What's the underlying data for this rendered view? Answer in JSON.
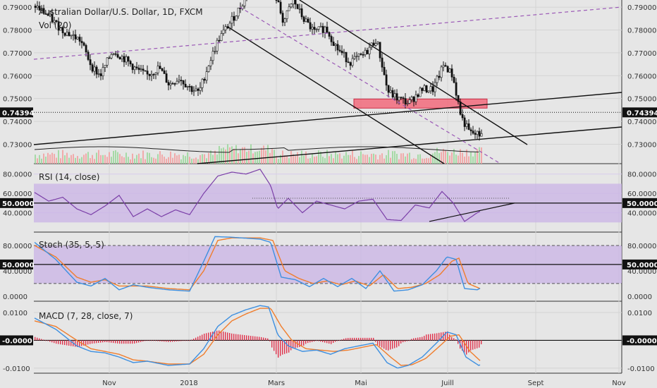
{
  "colors": {
    "background": "#e6e6e6",
    "bull": "#ffffff",
    "bear": "#101010",
    "rsi": "#7b3fa8",
    "rsi_band": "#c9b3e6",
    "stoch_k": "#3d8fe0",
    "stoch_d": "#f07d2c",
    "macd_line": "#3d8fe0",
    "signal_line": "#f07d2c",
    "hist_pos": "#e0334d",
    "hist_neg": "#e0334d",
    "zone": "#f26b7d",
    "trend": "#111111",
    "dashed": "#9b59b6",
    "vol_bar": "#f2a3a3",
    "vol_bar_up": "#9ed89e"
  },
  "chart_data": [
    {
      "type": "candlestick",
      "title": "Australian Dollar/U.S. Dollar, 1D, FXCM",
      "subtitle": "Vol (20)",
      "x_ticks": [
        "Nov",
        "2018",
        "Mars",
        "Mai",
        "Juill",
        "Sept",
        "Nov"
      ],
      "y_ticks": [
        "0.79000",
        "0.78000",
        "0.77000",
        "0.76000",
        "0.75000",
        "0.74000",
        "0.73000"
      ],
      "ylim": [
        0.7215,
        0.7925
      ],
      "last_price": "0.74394",
      "key_close_path": [
        [
          0,
          0.7905
        ],
        [
          16,
          0.7868
        ],
        [
          38,
          0.78
        ],
        [
          64,
          0.7755
        ],
        [
          80,
          0.764
        ],
        [
          92,
          0.76
        ],
        [
          110,
          0.771
        ],
        [
          128,
          0.767
        ],
        [
          142,
          0.763
        ],
        [
          158,
          0.76
        ],
        [
          176,
          0.7635
        ],
        [
          190,
          0.756
        ],
        [
          204,
          0.759
        ],
        [
          220,
          0.7545
        ],
        [
          232,
          0.7525
        ],
        [
          246,
          0.765
        ],
        [
          260,
          0.776
        ],
        [
          276,
          0.783
        ],
        [
          292,
          0.7905
        ],
        [
          312,
          0.805
        ],
        [
          326,
          0.808
        ],
        [
          340,
          0.796
        ],
        [
          352,
          0.7835
        ],
        [
          366,
          0.793
        ],
        [
          380,
          0.785
        ],
        [
          396,
          0.779
        ],
        [
          412,
          0.781
        ],
        [
          428,
          0.772
        ],
        [
          446,
          0.766
        ],
        [
          466,
          0.769
        ],
        [
          484,
          0.776
        ],
        [
          500,
          0.753
        ],
        [
          514,
          0.75
        ],
        [
          530,
          0.748
        ],
        [
          548,
          0.754
        ],
        [
          564,
          0.754
        ],
        [
          580,
          0.765
        ],
        [
          592,
          0.76
        ],
        [
          604,
          0.742
        ],
        [
          616,
          0.735
        ],
        [
          630,
          0.734
        ],
        [
          648,
          0.745
        ],
        [
          660,
          0.737
        ],
        [
          672,
          0.741
        ],
        [
          682,
          0.7439
        ]
      ],
      "resistance_zone": [
        0.7458,
        0.7498
      ],
      "annotations": [
        "descending channel",
        "ascending trendlines",
        "dashed parallel channel"
      ]
    },
    {
      "type": "line",
      "title": "RSI (14, close)",
      "y_ticks": [
        "80.0000",
        "60.0000",
        "40.0000"
      ],
      "badge": "50.0000",
      "ylim": [
        20,
        90
      ],
      "band": [
        30,
        70
      ],
      "key_points": [
        [
          0,
          61
        ],
        [
          20,
          52
        ],
        [
          40,
          56
        ],
        [
          60,
          44
        ],
        [
          80,
          38
        ],
        [
          100,
          47
        ],
        [
          120,
          58
        ],
        [
          140,
          36
        ],
        [
          160,
          44
        ],
        [
          180,
          36
        ],
        [
          200,
          43
        ],
        [
          220,
          38
        ],
        [
          240,
          60
        ],
        [
          260,
          78
        ],
        [
          280,
          82
        ],
        [
          300,
          80
        ],
        [
          320,
          85
        ],
        [
          335,
          68
        ],
        [
          345,
          44
        ],
        [
          360,
          55
        ],
        [
          380,
          40
        ],
        [
          400,
          52
        ],
        [
          420,
          48
        ],
        [
          440,
          44
        ],
        [
          460,
          52
        ],
        [
          480,
          54
        ],
        [
          500,
          33
        ],
        [
          520,
          32
        ],
        [
          540,
          48
        ],
        [
          560,
          45
        ],
        [
          578,
          62
        ],
        [
          594,
          50
        ],
        [
          610,
          31
        ],
        [
          628,
          40
        ],
        [
          648,
          47
        ],
        [
          668,
          46
        ],
        [
          682,
          55
        ]
      ]
    },
    {
      "type": "line",
      "title": "Stoch (35, 5, 5)",
      "y_ticks": [
        "80.0000",
        "40.0000",
        "0.0000"
      ],
      "badge": "50.0000",
      "ylim": [
        -8,
        100
      ],
      "band": [
        20,
        80
      ],
      "series": [
        {
          "name": "%K",
          "points": [
            [
              0,
              85
            ],
            [
              30,
              58
            ],
            [
              60,
              22
            ],
            [
              80,
              16
            ],
            [
              100,
              28
            ],
            [
              120,
              10
            ],
            [
              140,
              18
            ],
            [
              160,
              14
            ],
            [
              190,
              10
            ],
            [
              220,
              8
            ],
            [
              240,
              55
            ],
            [
              256,
              94
            ],
            [
              280,
              93
            ],
            [
              320,
              90
            ],
            [
              335,
              85
            ],
            [
              350,
              30
            ],
            [
              370,
              26
            ],
            [
              390,
              15
            ],
            [
              410,
              28
            ],
            [
              430,
              15
            ],
            [
              450,
              28
            ],
            [
              470,
              12
            ],
            [
              490,
              40
            ],
            [
              510,
              8
            ],
            [
              530,
              10
            ],
            [
              550,
              18
            ],
            [
              570,
              40
            ],
            [
              585,
              62
            ],
            [
              598,
              58
            ],
            [
              610,
              12
            ],
            [
              628,
              10
            ],
            [
              648,
              22
            ],
            [
              668,
              20
            ],
            [
              682,
              28
            ]
          ]
        },
        {
          "name": "%D",
          "points": [
            [
              0,
              80
            ],
            [
              30,
              62
            ],
            [
              60,
              30
            ],
            [
              80,
              22
            ],
            [
              100,
              26
            ],
            [
              120,
              16
            ],
            [
              140,
              16
            ],
            [
              160,
              16
            ],
            [
              190,
              12
            ],
            [
              220,
              10
            ],
            [
              240,
              40
            ],
            [
              260,
              88
            ],
            [
              280,
              92
            ],
            [
              320,
              92
            ],
            [
              338,
              88
            ],
            [
              355,
              40
            ],
            [
              375,
              28
            ],
            [
              395,
              20
            ],
            [
              415,
              24
            ],
            [
              435,
              18
            ],
            [
              455,
              24
            ],
            [
              475,
              16
            ],
            [
              495,
              34
            ],
            [
              515,
              12
            ],
            [
              535,
              14
            ],
            [
              555,
              20
            ],
            [
              575,
              34
            ],
            [
              592,
              55
            ],
            [
              602,
              60
            ],
            [
              615,
              20
            ],
            [
              632,
              12
            ],
            [
              650,
              18
            ],
            [
              670,
              22
            ],
            [
              682,
              24
            ]
          ]
        }
      ]
    },
    {
      "type": "line",
      "title": "MACD (7, 28, close, 7)",
      "y_ticks": [
        "0.0100",
        "-0.0100"
      ],
      "badge": "-0.0000",
      "ylim": [
        -0.0118,
        0.0138
      ],
      "series": [
        {
          "name": "MACD",
          "points": [
            [
              0,
              0.008
            ],
            [
              30,
              0.004
            ],
            [
              60,
              -0.002
            ],
            [
              80,
              -0.004
            ],
            [
              100,
              -0.0045
            ],
            [
              120,
              -0.006
            ],
            [
              140,
              -0.008
            ],
            [
              160,
              -0.0075
            ],
            [
              190,
              -0.009
            ],
            [
              220,
              -0.0085
            ],
            [
              240,
              -0.003
            ],
            [
              260,
              0.005
            ],
            [
              280,
              0.009
            ],
            [
              300,
              0.011
            ],
            [
              320,
              0.0125
            ],
            [
              332,
              0.012
            ],
            [
              345,
              0.002
            ],
            [
              360,
              -0.002
            ],
            [
              380,
              -0.004
            ],
            [
              400,
              -0.0035
            ],
            [
              420,
              -0.005
            ],
            [
              440,
              -0.003
            ],
            [
              460,
              -0.002
            ],
            [
              480,
              -0.001
            ],
            [
              500,
              -0.008
            ],
            [
              515,
              -0.01
            ],
            [
              530,
              -0.009
            ],
            [
              550,
              -0.006
            ],
            [
              570,
              -0.001
            ],
            [
              585,
              0.003
            ],
            [
              598,
              0.002
            ],
            [
              612,
              -0.006
            ],
            [
              630,
              -0.009
            ],
            [
              650,
              -0.007
            ],
            [
              668,
              -0.004
            ],
            [
              682,
              -0.002
            ]
          ]
        },
        {
          "name": "Signal",
          "points": [
            [
              0,
              0.007
            ],
            [
              30,
              0.005
            ],
            [
              60,
              0.0
            ],
            [
              80,
              -0.003
            ],
            [
              100,
              -0.004
            ],
            [
              120,
              -0.005
            ],
            [
              140,
              -0.007
            ],
            [
              160,
              -0.0075
            ],
            [
              190,
              -0.0085
            ],
            [
              220,
              -0.0085
            ],
            [
              240,
              -0.005
            ],
            [
              260,
              0.002
            ],
            [
              280,
              0.007
            ],
            [
              300,
              0.0095
            ],
            [
              320,
              0.0115
            ],
            [
              335,
              0.0115
            ],
            [
              350,
              0.005
            ],
            [
              365,
              0.0
            ],
            [
              385,
              -0.003
            ],
            [
              405,
              -0.0035
            ],
            [
              425,
              -0.004
            ],
            [
              445,
              -0.0035
            ],
            [
              465,
              -0.0025
            ],
            [
              485,
              -0.0015
            ],
            [
              505,
              -0.006
            ],
            [
              520,
              -0.009
            ],
            [
              535,
              -0.0088
            ],
            [
              555,
              -0.0065
            ],
            [
              575,
              -0.002
            ],
            [
              590,
              0.0015
            ],
            [
              602,
              0.002
            ],
            [
              618,
              -0.004
            ],
            [
              635,
              -0.008
            ],
            [
              655,
              -0.007
            ],
            [
              670,
              -0.005
            ],
            [
              682,
              -0.003
            ]
          ]
        }
      ]
    }
  ]
}
